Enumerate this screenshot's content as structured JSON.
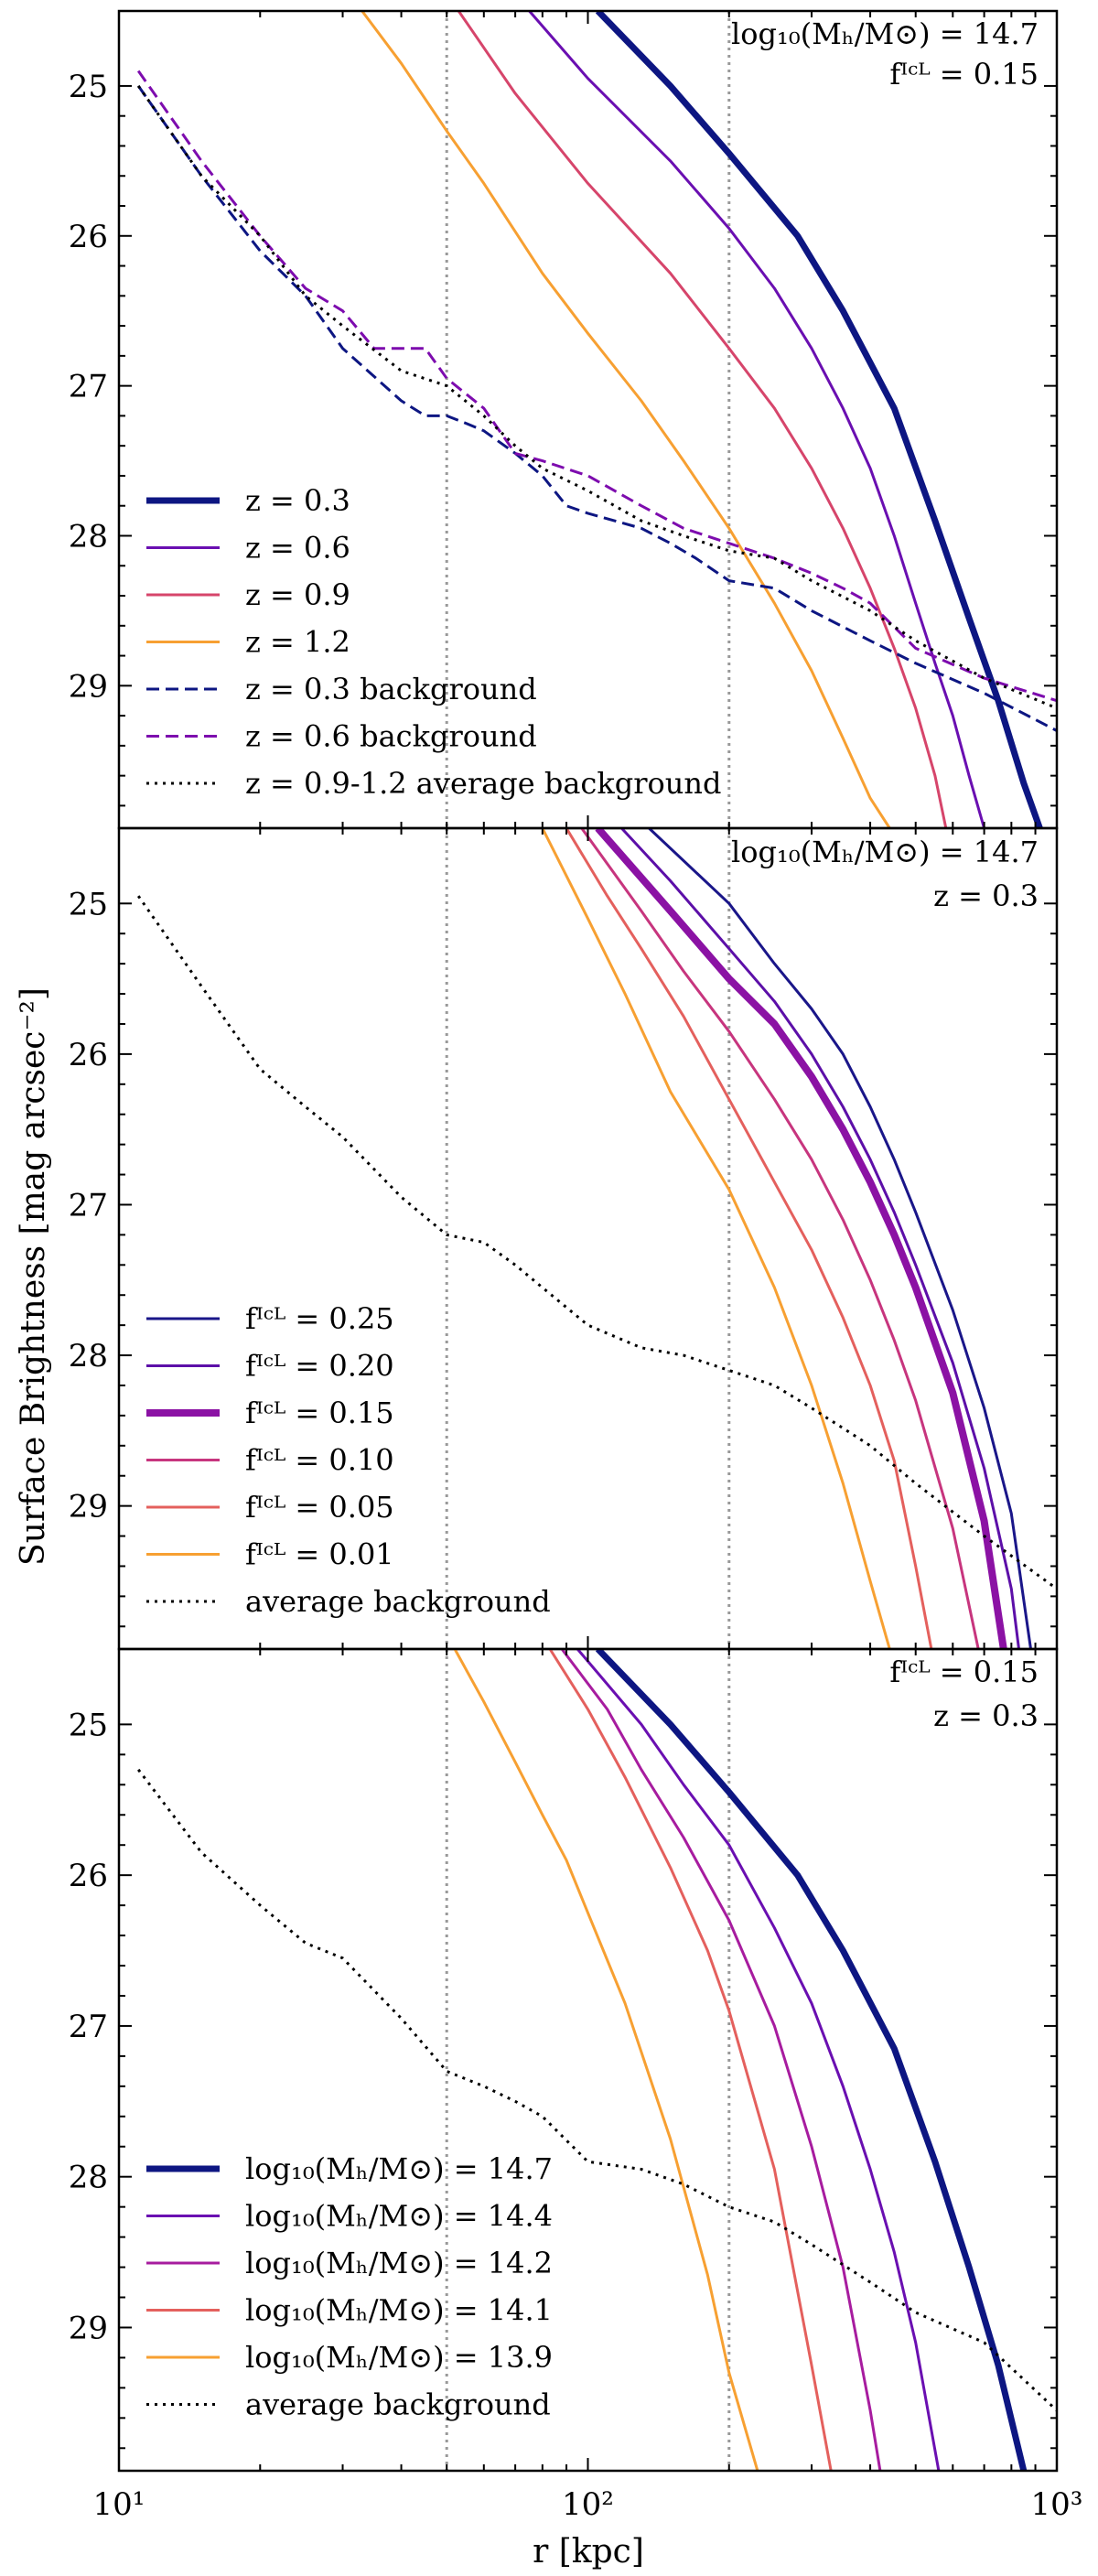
{
  "figure": {
    "ylabel": "Surface Brightness [mag arcsec⁻²]",
    "xlabel": "r [kpc]",
    "xscale": "log",
    "xlim": [
      10,
      1000
    ],
    "ylim": [
      29.95,
      24.5
    ],
    "x_ticks": [
      10,
      100,
      1000
    ],
    "x_tick_labels": [
      "10¹",
      "10²",
      "10³"
    ],
    "y_ticks": [
      25,
      26,
      27,
      28,
      29
    ],
    "y_tick_labels": [
      "25",
      "26",
      "27",
      "28",
      "29"
    ],
    "vlines_kpc": [
      50,
      200
    ],
    "vline_color": "#999999"
  },
  "chart_data": [
    {
      "type": "line",
      "panel": "top",
      "annotation": [
        "log₁₀(Mₕ/M⊙) = 14.7",
        "fᴵᶜᴸ = 0.15"
      ],
      "series": [
        {
          "name": "z = 0.3",
          "color": "#0d1682",
          "width": 7,
          "dash": "solid",
          "x": [
            105,
            150,
            200,
            280,
            350,
            450,
            550,
            650,
            750,
            850,
            920
          ],
          "y": [
            24.5,
            25.0,
            25.45,
            26.0,
            26.5,
            27.15,
            27.9,
            28.55,
            29.1,
            29.65,
            29.95
          ]
        },
        {
          "name": "z = 0.6",
          "color": "#6a0fb1",
          "width": 3,
          "dash": "solid",
          "x": [
            75,
            100,
            150,
            200,
            250,
            300,
            350,
            400,
            450,
            500,
            550,
            600,
            650,
            700
          ],
          "y": [
            24.5,
            24.95,
            25.5,
            25.95,
            26.35,
            26.75,
            27.15,
            27.55,
            28.0,
            28.45,
            28.85,
            29.2,
            29.6,
            29.95
          ]
        },
        {
          "name": "z = 0.9",
          "color": "#d6456b",
          "width": 3,
          "dash": "solid",
          "x": [
            53,
            70,
            100,
            150,
            200,
            250,
            300,
            350,
            400,
            450,
            500,
            550,
            580
          ],
          "y": [
            24.5,
            25.05,
            25.65,
            26.25,
            26.75,
            27.15,
            27.55,
            27.95,
            28.35,
            28.75,
            29.15,
            29.6,
            29.95
          ]
        },
        {
          "name": "z = 1.2",
          "color": "#f7a032",
          "width": 3,
          "dash": "solid",
          "x": [
            33,
            40,
            50,
            60,
            80,
            100,
            130,
            160,
            200,
            250,
            300,
            350,
            400,
            440
          ],
          "y": [
            24.5,
            24.85,
            25.3,
            25.65,
            26.25,
            26.65,
            27.1,
            27.5,
            27.95,
            28.45,
            28.9,
            29.35,
            29.75,
            29.95
          ]
        },
        {
          "name": "z = 0.3 background",
          "color": "#0d1682",
          "width": 3,
          "dash": "14,7",
          "x": [
            11,
            15,
            20,
            25,
            30,
            40,
            45,
            50,
            55,
            60,
            70,
            80,
            90,
            100,
            130,
            150,
            170,
            200,
            250,
            300,
            400,
            500,
            700,
            1000
          ],
          "y": [
            25.0,
            25.6,
            26.1,
            26.4,
            26.75,
            27.1,
            27.2,
            27.2,
            27.25,
            27.3,
            27.45,
            27.6,
            27.8,
            27.85,
            27.95,
            28.05,
            28.15,
            28.3,
            28.35,
            28.5,
            28.7,
            28.85,
            29.05,
            29.3
          ]
        },
        {
          "name": "z = 0.6 background",
          "color": "#7d0cae",
          "width": 3,
          "dash": "14,7",
          "x": [
            11,
            15,
            20,
            25,
            30,
            35,
            40,
            45,
            50,
            60,
            70,
            80,
            100,
            130,
            160,
            200,
            250,
            300,
            350,
            400,
            500,
            700,
            1000
          ],
          "y": [
            24.9,
            25.5,
            26.0,
            26.35,
            26.5,
            26.75,
            26.75,
            26.75,
            26.95,
            27.15,
            27.45,
            27.5,
            27.6,
            27.8,
            27.95,
            28.05,
            28.15,
            28.25,
            28.35,
            28.45,
            28.75,
            28.95,
            29.1
          ]
        },
        {
          "name": "z = 0.9-1.2 average background",
          "color": "#000000",
          "width": 3,
          "dash": "3,6",
          "x": [
            11,
            15,
            20,
            25,
            30,
            40,
            50,
            60,
            70,
            80,
            100,
            130,
            160,
            200,
            250,
            300,
            400,
            500,
            700,
            1000
          ],
          "y": [
            25.0,
            25.6,
            26.0,
            26.4,
            26.6,
            26.9,
            27.0,
            27.2,
            27.4,
            27.55,
            27.7,
            27.9,
            28.0,
            28.1,
            28.15,
            28.3,
            28.5,
            28.7,
            28.95,
            29.15
          ]
        }
      ]
    },
    {
      "type": "line",
      "panel": "middle",
      "annotation": [
        "log₁₀(Mₕ/M⊙) = 14.7",
        "z = 0.3"
      ],
      "series": [
        {
          "name": "fᴵᶜᴸ = 0.25",
          "color": "#1a1689",
          "width": 3,
          "dash": "solid",
          "x": [
            135,
            200,
            250,
            300,
            350,
            400,
            450,
            500,
            600,
            700,
            800,
            880
          ],
          "y": [
            24.5,
            25.0,
            25.4,
            25.7,
            26.0,
            26.35,
            26.7,
            27.05,
            27.7,
            28.35,
            29.05,
            29.95
          ]
        },
        {
          "name": "fᴵᶜᴸ = 0.20",
          "color": "#5c0fa8",
          "width": 3,
          "dash": "solid",
          "x": [
            118,
            150,
            200,
            250,
            300,
            350,
            400,
            450,
            500,
            600,
            700,
            800,
            830
          ],
          "y": [
            24.5,
            24.85,
            25.3,
            25.65,
            26.0,
            26.35,
            26.7,
            27.05,
            27.4,
            28.05,
            28.75,
            29.55,
            29.95
          ]
        },
        {
          "name": "fᴵᶜᴸ = 0.15",
          "color": "#8b12a4",
          "width": 8,
          "dash": "solid",
          "x": [
            105,
            150,
            200,
            250,
            300,
            350,
            400,
            450,
            500,
            600,
            700,
            770
          ],
          "y": [
            24.5,
            25.05,
            25.5,
            25.8,
            26.15,
            26.5,
            26.85,
            27.2,
            27.55,
            28.25,
            29.1,
            29.95
          ]
        },
        {
          "name": "fᴵᶜᴸ = 0.10",
          "color": "#c7357e",
          "width": 3,
          "dash": "solid",
          "x": [
            97,
            130,
            160,
            200,
            250,
            300,
            350,
            400,
            450,
            500,
            600,
            680
          ],
          "y": [
            24.5,
            25.05,
            25.45,
            25.85,
            26.3,
            26.7,
            27.1,
            27.5,
            27.9,
            28.3,
            29.15,
            29.95
          ]
        },
        {
          "name": "fᴵᶜᴸ = 0.05",
          "color": "#e4605d",
          "width": 3,
          "dash": "solid",
          "x": [
            90,
            110,
            130,
            160,
            200,
            250,
            300,
            350,
            400,
            450,
            500,
            540
          ],
          "y": [
            24.5,
            24.95,
            25.3,
            25.75,
            26.3,
            26.85,
            27.3,
            27.75,
            28.2,
            28.7,
            29.4,
            29.95
          ]
        },
        {
          "name": "fᴵᶜᴸ = 0.01",
          "color": "#f7a032",
          "width": 3,
          "dash": "solid",
          "x": [
            80,
            100,
            120,
            150,
            200,
            250,
            300,
            350,
            400,
            440
          ],
          "y": [
            24.5,
            25.1,
            25.6,
            26.25,
            26.9,
            27.55,
            28.2,
            28.85,
            29.5,
            29.95
          ]
        },
        {
          "name": "average background",
          "color": "#000000",
          "width": 3,
          "dash": "3,6",
          "x": [
            11,
            15,
            20,
            25,
            30,
            40,
            50,
            60,
            70,
            80,
            100,
            130,
            160,
            200,
            250,
            300,
            400,
            500,
            700,
            1000
          ],
          "y": [
            24.95,
            25.55,
            26.1,
            26.35,
            26.55,
            26.95,
            27.2,
            27.25,
            27.4,
            27.55,
            27.8,
            27.95,
            28.0,
            28.1,
            28.2,
            28.35,
            28.6,
            28.85,
            29.2,
            29.55
          ]
        }
      ]
    },
    {
      "type": "line",
      "panel": "bottom",
      "annotation": [
        "fᴵᶜᴸ = 0.15",
        "z = 0.3"
      ],
      "series": [
        {
          "name": "log₁₀(Mₕ/M⊙) = 14.7",
          "color": "#0d1682",
          "width": 7,
          "dash": "solid",
          "x": [
            105,
            150,
            200,
            280,
            350,
            450,
            550,
            650,
            750,
            850
          ],
          "y": [
            24.5,
            25.0,
            25.45,
            26.0,
            26.5,
            27.15,
            27.9,
            28.6,
            29.25,
            29.95
          ]
        },
        {
          "name": "log₁₀(Mₕ/M⊙) = 14.4",
          "color": "#6a0fb1",
          "width": 3,
          "dash": "solid",
          "x": [
            95,
            130,
            160,
            200,
            250,
            300,
            350,
            400,
            450,
            500,
            560
          ],
          "y": [
            24.5,
            25.0,
            25.4,
            25.8,
            26.35,
            26.85,
            27.4,
            27.95,
            28.5,
            29.1,
            29.95
          ]
        },
        {
          "name": "log₁₀(Mₕ/M⊙) = 14.2",
          "color": "#a71c9f",
          "width": 3,
          "dash": "solid",
          "x": [
            88,
            110,
            130,
            160,
            200,
            250,
            300,
            350,
            400,
            420
          ],
          "y": [
            24.5,
            24.9,
            25.3,
            25.75,
            26.3,
            27.0,
            27.8,
            28.6,
            29.55,
            29.95
          ]
        },
        {
          "name": "log₁₀(Mₕ/M⊙) = 14.1",
          "color": "#e4605d",
          "width": 3,
          "dash": "solid",
          "x": [
            83,
            100,
            120,
            150,
            180,
            200,
            250,
            300,
            330
          ],
          "y": [
            24.5,
            24.9,
            25.35,
            25.95,
            26.5,
            26.9,
            27.95,
            29.25,
            29.95
          ]
        },
        {
          "name": "log₁₀(Mₕ/M⊙) = 13.9",
          "color": "#f7a032",
          "width": 3,
          "dash": "solid",
          "x": [
            52,
            60,
            70,
            80,
            90,
            100,
            120,
            150,
            180,
            200,
            230
          ],
          "y": [
            24.5,
            24.85,
            25.25,
            25.6,
            25.9,
            26.25,
            26.85,
            27.75,
            28.65,
            29.3,
            29.95
          ]
        },
        {
          "name": "average background",
          "color": "#000000",
          "width": 3,
          "dash": "3,6",
          "x": [
            11,
            15,
            20,
            25,
            30,
            40,
            50,
            60,
            70,
            80,
            100,
            130,
            160,
            200,
            250,
            300,
            400,
            500,
            700,
            1000
          ],
          "y": [
            25.3,
            25.85,
            26.2,
            26.45,
            26.55,
            26.95,
            27.3,
            27.4,
            27.5,
            27.6,
            27.9,
            27.95,
            28.05,
            28.2,
            28.3,
            28.45,
            28.7,
            28.9,
            29.1,
            29.55
          ]
        }
      ]
    }
  ]
}
